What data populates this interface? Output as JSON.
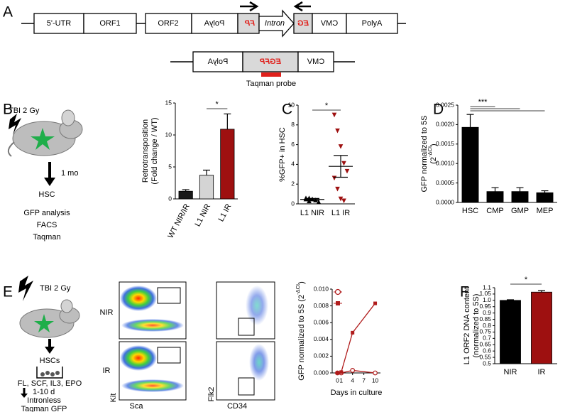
{
  "panel_labels": [
    "A",
    "B",
    "C",
    "D",
    "E",
    "F"
  ],
  "construct": {
    "row1": [
      "5'-UTR",
      "ORF1",
      "ORF2",
      "PolyA",
      "FP",
      "Intron",
      "EG",
      "CMV",
      "PolyA"
    ],
    "row2": [
      "PolyA",
      "EGFP",
      "CMV"
    ],
    "probe": "Taqman probe"
  },
  "schematic_b": {
    "treatment": "TBI 2 Gy",
    "time": "1 mo",
    "cells": "HSC",
    "readouts": [
      "GFP analysis",
      "FACS",
      "Taqman"
    ]
  },
  "schematic_e": {
    "treatment": "TBI 2 Gy",
    "cells": "HSCs",
    "culture": "FL, SCF, IL3, EPO",
    "time": "1-10 d",
    "readouts": [
      "Intronless",
      "Taqman GFP"
    ]
  },
  "flow": {
    "rows": [
      "NIR",
      "IR"
    ],
    "plot1_axes": [
      "Kit",
      "Sca"
    ],
    "plot2_axes": [
      "Flk2",
      "CD34"
    ]
  },
  "chart_data": [
    {
      "type": "bar",
      "ylabel": [
        "Retrotransposition",
        "(Fold change / WT)"
      ],
      "categories": [
        "WT NIR/IR",
        "L1 NIR",
        "L1 IR"
      ],
      "values": [
        1.2,
        3.7,
        10.9
      ],
      "errors": [
        0.25,
        0.8,
        2.4
      ],
      "colors": [
        "#1a1a1a",
        "#d4d4d4",
        "#9e1010"
      ],
      "ylim": [
        0,
        15
      ],
      "yticks": [
        0,
        5,
        10,
        15
      ],
      "significance": "*"
    },
    {
      "type": "strip",
      "ylabel": [
        "%GFP+ in HSC"
      ],
      "categories": [
        "L1 NIR",
        "L1 IR"
      ],
      "series": [
        {
          "color": "#000000",
          "marker": "triangle",
          "values": [
            0.6,
            0.3,
            0.5,
            0.4,
            0.2,
            0.5,
            0.6
          ]
        },
        {
          "color": "#9e1010",
          "marker": "triangle-down",
          "values": [
            9.0,
            7.4,
            5.8,
            4.1,
            3.3,
            2.6,
            1.5,
            0.5,
            0.3
          ]
        }
      ],
      "means": [
        0.45,
        3.8
      ],
      "errors": [
        0.1,
        1.1
      ],
      "ylim": [
        0,
        10
      ],
      "yticks": [
        0,
        2,
        4,
        6,
        8,
        10
      ],
      "significance": "*"
    },
    {
      "type": "bar",
      "ylabel": [
        "GFP normalized to 5S",
        [
          "(2",
          "-ΔCt",
          ")"
        ]
      ],
      "categories": [
        "HSC",
        "CMP",
        "GMP",
        "MEP"
      ],
      "values": [
        0.00193,
        0.00028,
        0.00028,
        0.00025
      ],
      "errors": [
        0.00033,
        0.0001,
        0.0001,
        5e-05
      ],
      "color": "#000000",
      "ylim": [
        0,
        0.0025
      ],
      "yticks": [
        {
          "value": 0,
          "label": "0.0000"
        },
        {
          "value": 0.0005,
          "label": "0.0005"
        },
        {
          "value": 0.001,
          "label": "0.0010"
        },
        {
          "value": 0.0015,
          "label": "0.0015"
        },
        {
          "value": 0.002,
          "label": "0.0020"
        },
        {
          "value": 0.0025,
          "label": "0.0025"
        }
      ],
      "significance": "***"
    },
    {
      "type": "line",
      "ylabel": [
        [
          "GFP normalized to 5S (2",
          "-ΔCt",
          ")"
        ]
      ],
      "xlabel": "Days in culture",
      "x": [
        0,
        1,
        4,
        10
      ],
      "xlim": [
        -1.4,
        11.4
      ],
      "xticks": [
        0,
        1,
        4,
        7,
        10
      ],
      "series": [
        {
          "color": "#b01c1c",
          "marker": "circle",
          "values": [
            0,
            0,
            0.0003,
            0
          ]
        },
        {
          "color": "#b01c1c",
          "marker": "square",
          "values": [
            0,
            0.0001,
            0.0048,
            0.0083
          ]
        }
      ],
      "ylim": [
        0,
        0.01
      ],
      "yticks": [
        {
          "value": 0,
          "label": "0.000"
        },
        {
          "value": 0.002,
          "label": "0.002"
        },
        {
          "value": 0.004,
          "label": "0.004"
        },
        {
          "value": 0.006,
          "label": "0.006"
        },
        {
          "value": 0.008,
          "label": "0.008"
        },
        {
          "value": 0.01,
          "label": "0.010"
        }
      ]
    },
    {
      "type": "bar",
      "ylabel": [
        "L1 ORF2 DNA content",
        "(normalized to 5S)"
      ],
      "categories": [
        "NIR",
        "IR"
      ],
      "values": [
        1.0,
        1.065
      ],
      "errors": [
        0.005,
        0.012
      ],
      "colors": [
        "#000000",
        "#9e1010"
      ],
      "ylim": [
        0.5,
        1.1
      ],
      "yticks": [
        0.5,
        0.55,
        0.6,
        0.65,
        0.7,
        0.75,
        0.8,
        0.85,
        0.9,
        0.95,
        {
          "value": 1,
          "label": "1.0"
        },
        1.05,
        1.1
      ],
      "significance": "*"
    }
  ]
}
